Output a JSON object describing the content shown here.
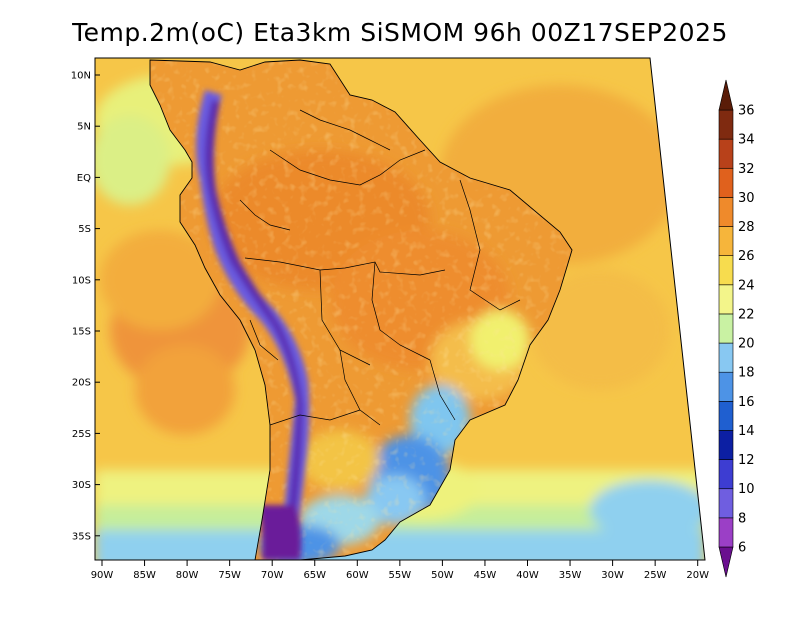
{
  "title": "Temp.2m(oC) Eta3km SiSMOM 96h 00Z17SEP2025",
  "lat_labels": [
    "10N",
    "5N",
    "EQ",
    "5S",
    "10S",
    "15S",
    "20S",
    "25S",
    "30S",
    "35S"
  ],
  "lon_labels": [
    "90W",
    "85W",
    "80W",
    "75W",
    "70W",
    "65W",
    "60W",
    "55W",
    "50W",
    "45W",
    "40W",
    "35W",
    "30W",
    "25W",
    "20W"
  ],
  "colorbar": {
    "labels": [
      "6",
      "8",
      "10",
      "12",
      "14",
      "16",
      "18",
      "20",
      "22",
      "24",
      "26",
      "28",
      "30",
      "32",
      "34",
      "36"
    ],
    "colors": [
      "#6a0f8f",
      "#9b3fc6",
      "#6f5ee0",
      "#3d3dd2",
      "#0c1fa3",
      "#1f5fd0",
      "#4d93e6",
      "#88c8f2",
      "#c9f2a3",
      "#f3f58a",
      "#f7dc4e",
      "#f6b53b",
      "#ef8a2b",
      "#e0611d",
      "#b8411a",
      "#7f2a10",
      "#5a1c08"
    ]
  },
  "field_colors": {
    "ocean_warm": "#f7b840",
    "ocean_mid": "#f5cc4a",
    "ocean_cool": "#f1f06e",
    "ocean_cold": "#a8e8a0",
    "ocean_colder": "#7fc6ef",
    "land_hot": "#ec8a2c",
    "land_warm": "#f0a63a",
    "andes": "#5a3fc0"
  }
}
